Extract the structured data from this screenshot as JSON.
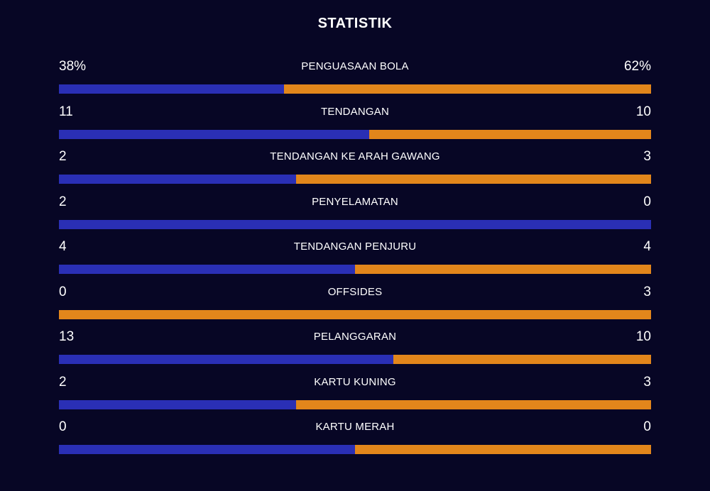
{
  "title": "STATISTIK",
  "colors": {
    "background": "#070625",
    "home": "#2a2fb5",
    "away": "#e2861b",
    "text": "#ffffff"
  },
  "stats": [
    {
      "label": "PENGUASAAN BOLA",
      "left": "38%",
      "right": "62%",
      "left_share": 0.38
    },
    {
      "label": "TENDANGAN",
      "left": "11",
      "right": "10",
      "left_share": 0.524
    },
    {
      "label": "TENDANGAN KE ARAH GAWANG",
      "left": "2",
      "right": "3",
      "left_share": 0.4
    },
    {
      "label": "PENYELAMATAN",
      "left": "2",
      "right": "0",
      "left_share": 1.0
    },
    {
      "label": "TENDANGAN PENJURU",
      "left": "4",
      "right": "4",
      "left_share": 0.5
    },
    {
      "label": "OFFSIDES",
      "left": "0",
      "right": "3",
      "left_share": 0.0
    },
    {
      "label": "PELANGGARAN",
      "left": "13",
      "right": "10",
      "left_share": 0.565
    },
    {
      "label": "KARTU KUNING",
      "left": "2",
      "right": "3",
      "left_share": 0.4
    },
    {
      "label": "KARTU MERAH",
      "left": "0",
      "right": "0",
      "left_share": 0.5
    }
  ]
}
